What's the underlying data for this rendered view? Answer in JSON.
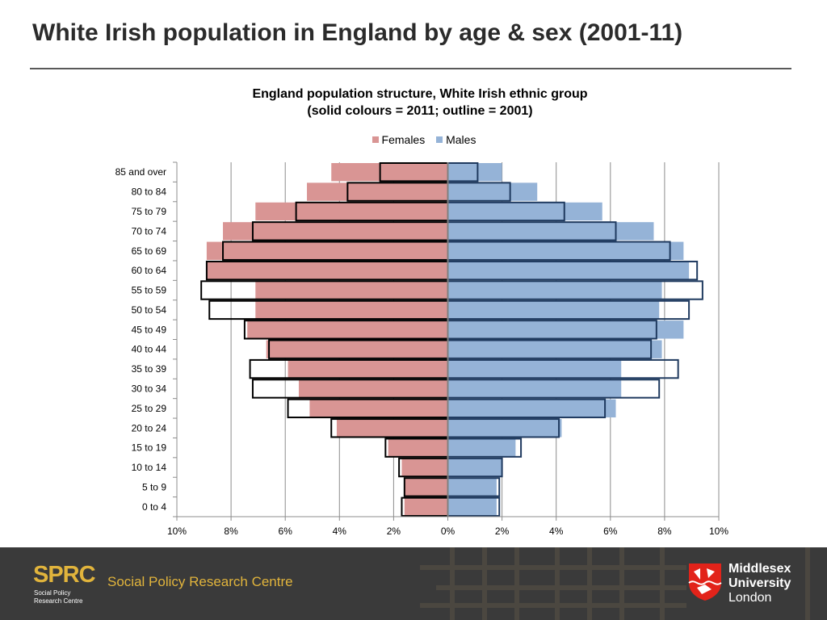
{
  "slide": {
    "title": "White Irish population in England by age & sex (2001-11)"
  },
  "chart_data": {
    "type": "bar",
    "orientation": "horizontal-population-pyramid",
    "title": "England population structure, White Irish ethnic group",
    "subtitle": "(solid colours = 2011; outline = 2001)",
    "legend": [
      {
        "name": "Females",
        "color": "#d99594"
      },
      {
        "name": "Males",
        "color": "#95b3d7"
      }
    ],
    "categories": [
      "0 to 4",
      "5 to 9",
      "10 to 14",
      "15 to 19",
      "20 to 24",
      "25 to 29",
      "30 to 34",
      "35 to 39",
      "40 to 44",
      "45 to 49",
      "50 to 54",
      "55 to 59",
      "60 to 64",
      "65 to 69",
      "70 to 74",
      "75 to 79",
      "80 to 84",
      "85 and over"
    ],
    "series": [
      {
        "name": "Females",
        "year": "2011",
        "style": "solid",
        "color": "#d99594",
        "values": [
          1.6,
          1.6,
          1.7,
          2.2,
          4.1,
          5.1,
          5.5,
          5.9,
          6.7,
          7.4,
          7.1,
          7.1,
          8.9,
          8.9,
          8.3,
          7.1,
          5.2,
          4.3
        ]
      },
      {
        "name": "Males",
        "year": "2011",
        "style": "solid",
        "color": "#95b3d7",
        "values": [
          1.8,
          1.8,
          2.0,
          2.5,
          4.2,
          6.2,
          6.4,
          6.4,
          7.9,
          8.7,
          7.8,
          7.9,
          8.9,
          8.7,
          7.6,
          5.7,
          3.3,
          2.0
        ]
      },
      {
        "name": "Females",
        "year": "2001",
        "style": "outline",
        "values": [
          1.7,
          1.6,
          1.8,
          2.3,
          4.3,
          5.9,
          7.2,
          7.3,
          6.6,
          7.5,
          8.8,
          9.1,
          8.9,
          8.3,
          7.2,
          5.6,
          3.7,
          2.5
        ]
      },
      {
        "name": "Males",
        "year": "2001",
        "style": "outline",
        "values": [
          1.9,
          1.9,
          2.0,
          2.7,
          4.1,
          5.8,
          7.8,
          8.5,
          7.5,
          7.7,
          8.9,
          9.4,
          9.2,
          8.2,
          6.2,
          4.3,
          2.3,
          1.1
        ]
      }
    ],
    "xticks": [
      "10%",
      "8%",
      "6%",
      "4%",
      "2%",
      "0%",
      "2%",
      "4%",
      "6%",
      "8%",
      "10%"
    ],
    "xlim": [
      -10,
      10
    ],
    "grid": "vertical",
    "legend_position": "top"
  },
  "footer": {
    "sprc_logo": "SPRC",
    "sprc_sub_1": "Social Policy",
    "sprc_sub_2": "Research Centre",
    "sprc_name": "Social Policy Research Centre",
    "university_line_1": "Middlesex",
    "university_line_2": "University",
    "university_line_3": "London"
  }
}
